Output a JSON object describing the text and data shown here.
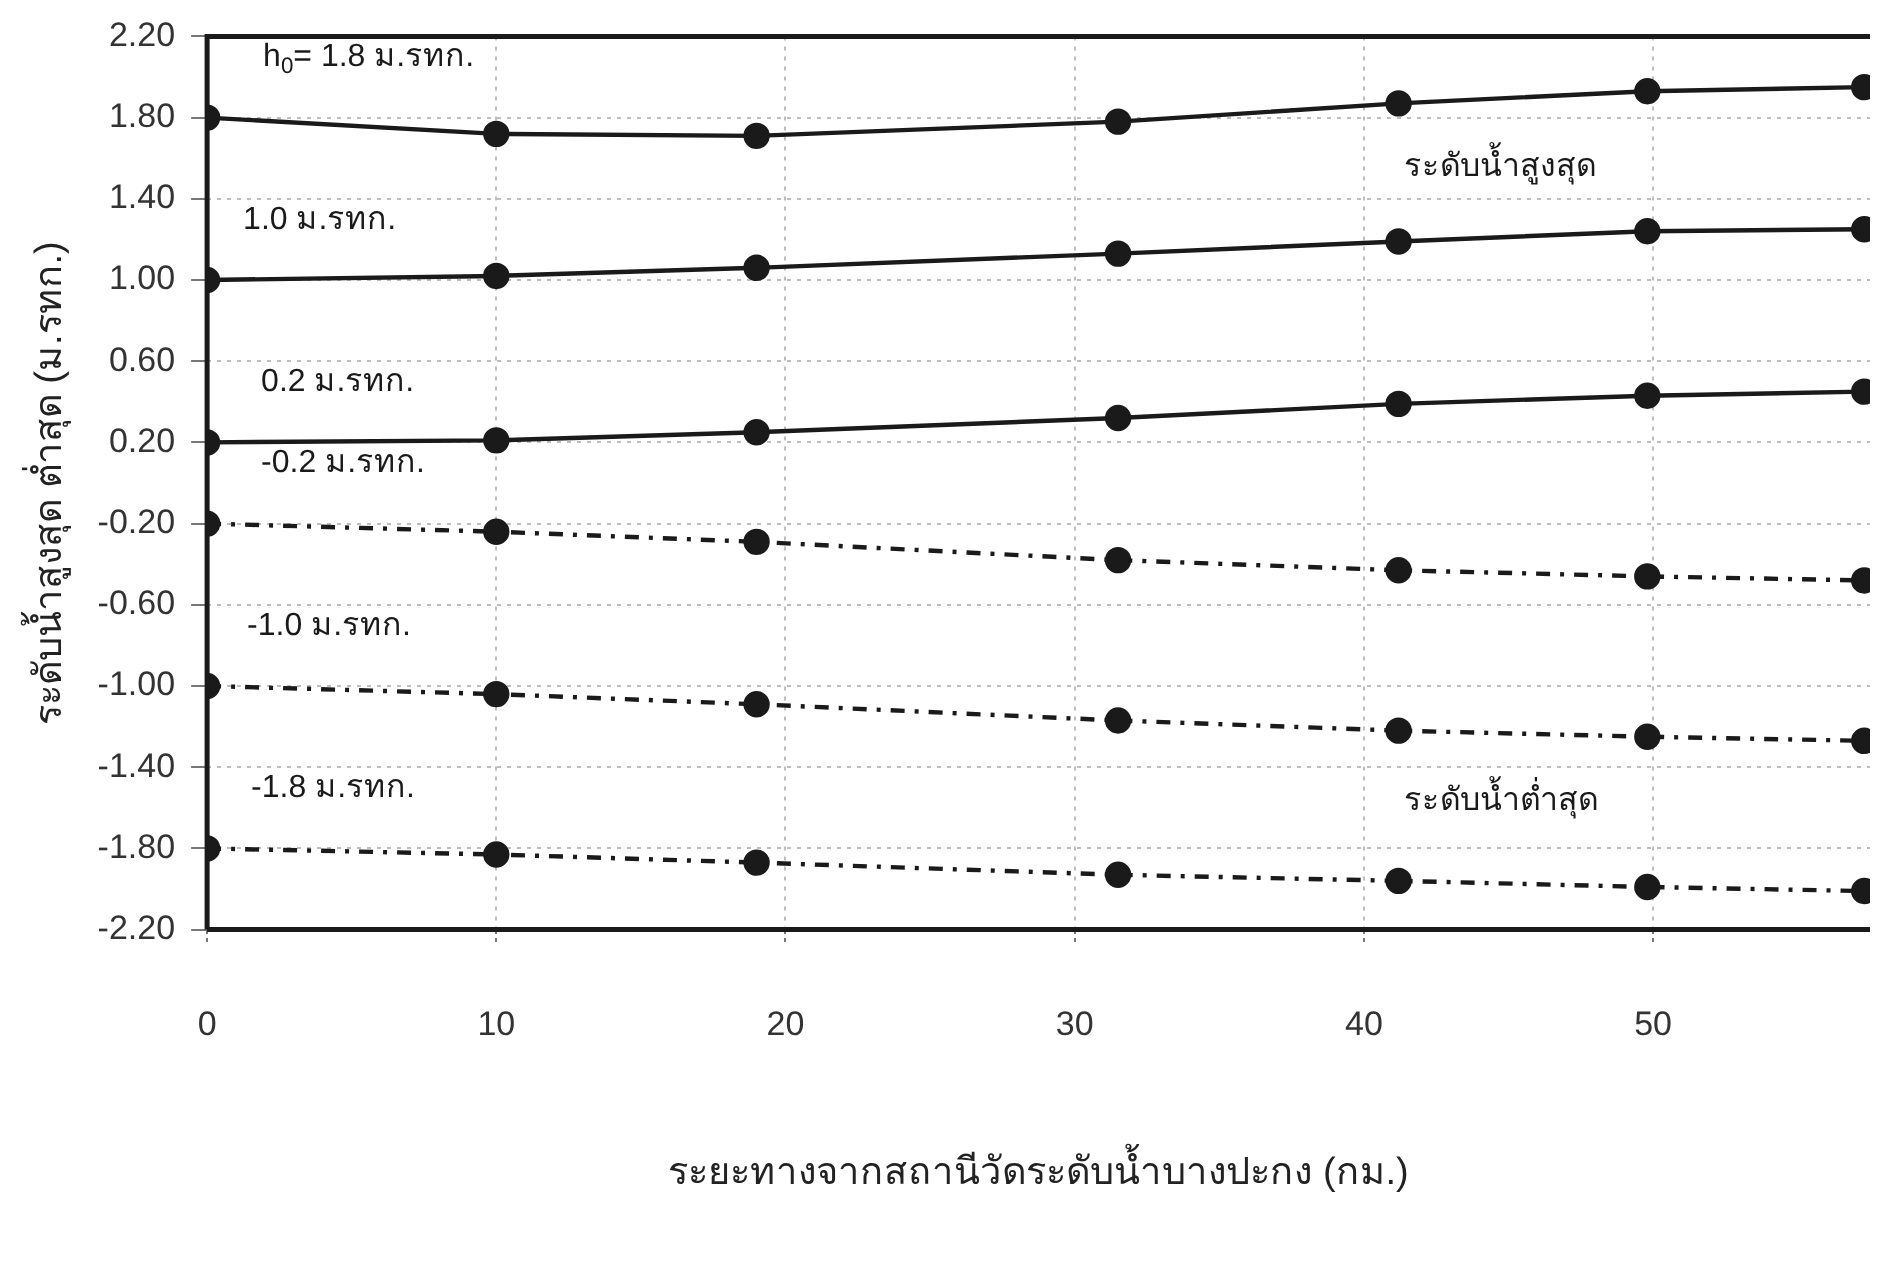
{
  "chart_data": {
    "type": "line",
    "xlabel": "ระยะทางจากสถานีวัดระดับน้ำบางปะกง (กม.)",
    "ylabel": "ระดับน้ำสูงสุด ต่ำสุด (ม.รทก.)",
    "x": [
      0,
      10,
      19,
      31.5,
      41.2,
      49.8,
      57.3
    ],
    "xlim": [
      0,
      57.5
    ],
    "xticks": [
      0,
      10,
      20,
      30,
      40,
      50
    ],
    "ylim": [
      -2.2,
      2.2
    ],
    "yticks": [
      {
        "value": 2.2,
        "label": "2.20"
      },
      {
        "value": 1.8,
        "label": "1.80"
      },
      {
        "value": 1.4,
        "label": "1.40"
      },
      {
        "value": 1,
        "label": "1.00"
      },
      {
        "value": 0.6,
        "label": "0.60"
      },
      {
        "value": 0.2,
        "label": "0.20"
      },
      {
        "value": -0.2,
        "label": "-0.20"
      },
      {
        "value": -0.6,
        "label": "-0.60"
      },
      {
        "value": -1,
        "label": "-1.00"
      },
      {
        "value": -1.4,
        "label": "-1.40"
      },
      {
        "value": -1.8,
        "label": "-1.80"
      },
      {
        "value": -2.2,
        "label": "-2.20"
      }
    ],
    "grid": true,
    "marker": "circle",
    "legend": false,
    "series": [
      {
        "color": "#1a1a1a",
        "line_style": "solid",
        "values": [
          1.8,
          1.72,
          1.71,
          1.78,
          1.87,
          1.93,
          1.95
        ]
      },
      {
        "color": "#1a1a1a",
        "line_style": "solid",
        "values": [
          1.0,
          1.02,
          1.06,
          1.13,
          1.19,
          1.24,
          1.25
        ]
      },
      {
        "color": "#1a1a1a",
        "line_style": "solid",
        "values": [
          0.2,
          0.21,
          0.25,
          0.32,
          0.39,
          0.43,
          0.45
        ]
      },
      {
        "color": "#1a1a1a",
        "line_style": "dashed",
        "values": [
          -0.2,
          -0.24,
          -0.29,
          -0.38,
          -0.43,
          -0.46,
          -0.48
        ]
      },
      {
        "color": "#1a1a1a",
        "line_style": "dashed",
        "values": [
          -1.0,
          -1.04,
          -1.09,
          -1.17,
          -1.22,
          -1.25,
          -1.27
        ]
      },
      {
        "color": "#1a1a1a",
        "line_style": "dashed",
        "values": [
          -1.8,
          -1.83,
          -1.87,
          -1.93,
          -1.96,
          -1.99,
          -2.01
        ]
      }
    ],
    "annotations": [
      "h$_{0}$= 1.8 ม.รทก.",
      "1.0 ม.รทก.",
      "0.2 ม.รทก.",
      "-0.2 ม.รทก.",
      "-1.0 ม.รทก.",
      "-1.8 ม.รทก.",
      "ระดับน้ำสูงสุด",
      "ระดับน้ำต่ำสุด"
    ]
  }
}
